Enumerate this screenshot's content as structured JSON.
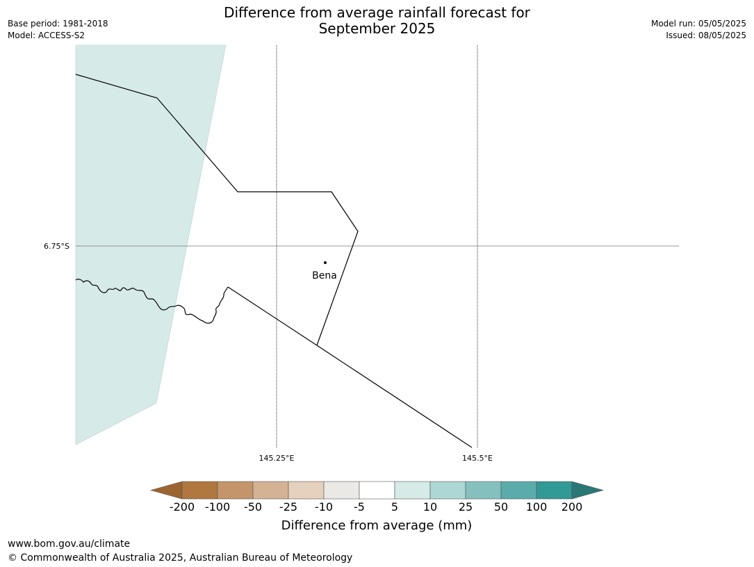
{
  "header": {
    "title_line1": "Difference from average rainfall forecast for",
    "title_line2": "September 2025",
    "base_period": "Base period: 1981-2018",
    "model": "Model: ACCESS-S2",
    "model_run": "Model run: 05/05/2025",
    "issued": "Issued: 08/05/2025"
  },
  "map": {
    "lat_label": "6.75°S",
    "lon_labels": [
      "145.25°E",
      "145.5°E"
    ],
    "place_label": "Bena",
    "fill_color": "#d6eae8"
  },
  "colorbar": {
    "title": "Difference from average (mm)",
    "tick_labels": [
      "-200",
      "-100",
      "-50",
      "-25",
      "-10",
      "-5",
      "5",
      "10",
      "25",
      "50",
      "100",
      "200"
    ],
    "colors": [
      "#9c6530",
      "#b0773f",
      "#c4946a",
      "#d4b294",
      "#e6d0be",
      "#ebe9e6",
      "#ffffff",
      "#d6eae8",
      "#acd7d5",
      "#84c1be",
      "#5aacab",
      "#319996",
      "#2a7775"
    ]
  },
  "footer": {
    "url": "www.bom.gov.au/climate",
    "copyright": "© Commonwealth of Australia 2025, Australian Bureau of Meteorology"
  }
}
